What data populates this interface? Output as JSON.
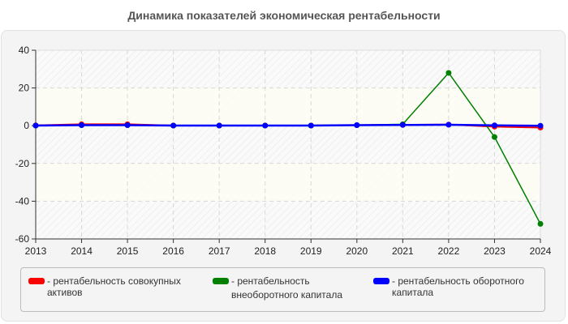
{
  "chart_data": {
    "type": "line",
    "title": "Динамика показателей экономическая рентабельности",
    "xlabel": "",
    "ylabel": "",
    "x": [
      "2013",
      "2014",
      "2015",
      "2016",
      "2017",
      "2018",
      "2019",
      "2020",
      "2021",
      "2022",
      "2023",
      "2024"
    ],
    "ylim": [
      -60,
      40
    ],
    "yticks": [
      40,
      20,
      0,
      -20,
      -40,
      -60
    ],
    "grid": true,
    "legend_position": "bottom",
    "series": [
      {
        "name": "рентабельность совокупных активов",
        "color": "#ff0000",
        "values": [
          0.2,
          0.8,
          0.8,
          0.1,
          0.1,
          0.1,
          0.1,
          0.3,
          0.5,
          0.6,
          -0.5,
          -1.0
        ]
      },
      {
        "name": "рентабельность внеоборотного капитала",
        "color": "#008000",
        "values": [
          0.1,
          0.3,
          0.3,
          0.1,
          0.1,
          0.1,
          0.1,
          0.3,
          0.8,
          28.0,
          -6.0,
          -52.0
        ]
      },
      {
        "name": "рентабельность оборотного капитала",
        "color": "#0000ff",
        "values": [
          0.1,
          0.3,
          0.3,
          0.1,
          0.1,
          0.1,
          0.1,
          0.3,
          0.4,
          0.5,
          0.2,
          0.0
        ]
      }
    ]
  },
  "legend": [
    {
      "label": "- рентабельность совокупных\nактивов",
      "color": "#ff0000"
    },
    {
      "label": "- рентабельность\nвнеоборотного капитала",
      "color": "#008000"
    },
    {
      "label": "- рентабельность оборотного\nкапитала",
      "color": "#0000ff"
    }
  ]
}
